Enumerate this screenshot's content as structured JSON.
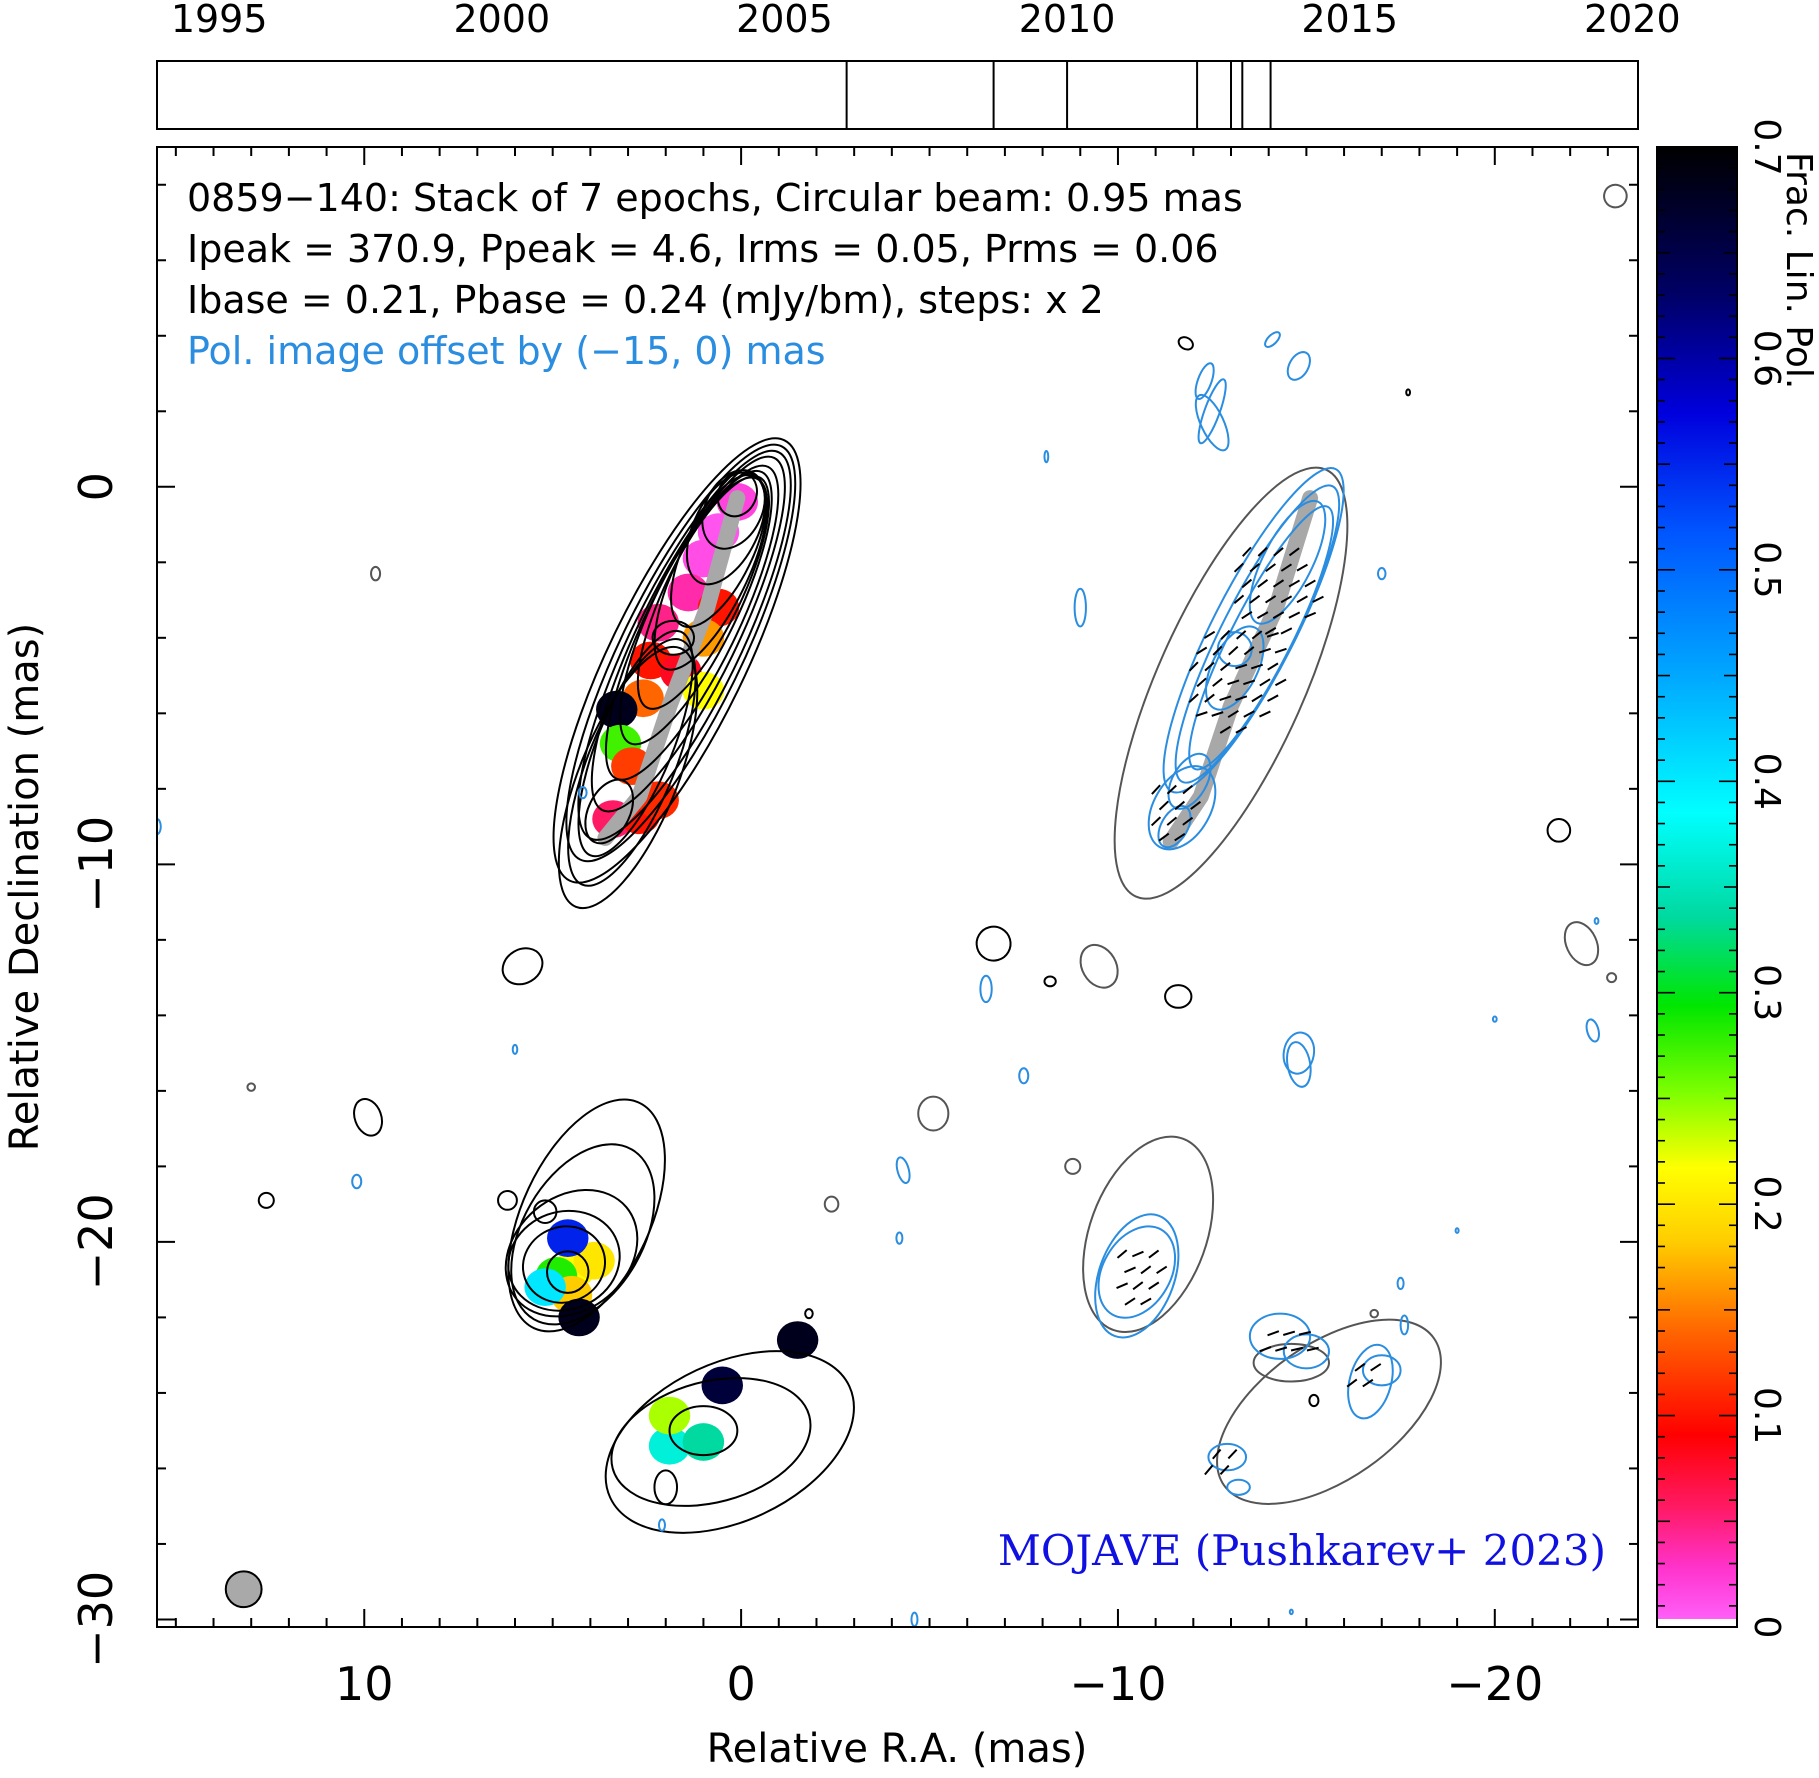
{
  "chart_data": {
    "type": "heatmap",
    "header": {
      "line1": "0859−140: Stack of 7 epochs, Circular beam: 0.95 mas",
      "line2": "Ipeak = 370.9, Ppeak = 4.6, Irms = 0.05, Prms = 0.06",
      "line3": "Ibase = 0.21, Pbase = 0.24 (mJy/bm), steps: x 2",
      "line4": "Pol. image offset by (−15, 0) mas"
    },
    "credit": "MOJAVE (Pushkarev+ 2023)",
    "xlabel": "Relative R.A. (mas)",
    "ylabel": "Relative Declination (mas)",
    "colorbar_label": "Frac. Lin. Pol.",
    "xlim": [
      15.5,
      -23.8
    ],
    "ylim": [
      -30.2,
      9.0
    ],
    "x_ticks": [
      "10",
      "0",
      "−10",
      "−20"
    ],
    "y_ticks": [
      "0",
      "−10",
      "−20",
      "−30"
    ],
    "colorbar_range": [
      0,
      0.7
    ],
    "colorbar_ticks": [
      "0",
      "0.1",
      "0.2",
      "0.3",
      "0.4",
      "0.5",
      "0.6",
      "0.7"
    ],
    "timeline": {
      "years": [
        "1995",
        "2000",
        "2005",
        "2010",
        "2015",
        "2020"
      ],
      "range": [
        1993.9,
        2020.1
      ],
      "epochs": [
        2006.1,
        2008.7,
        2010.0,
        2012.3,
        2012.9,
        2013.1,
        2013.6
      ]
    },
    "stack_epochs": 7,
    "beam_mas": 0.95,
    "ridge_total": [
      [
        0.1,
        -0.3
      ],
      [
        0.9,
        -3.2
      ],
      [
        1.9,
        -5.8
      ],
      [
        2.7,
        -8.2
      ],
      [
        3.6,
        -9.3
      ]
    ],
    "ridge_pol": [
      [
        -15.1,
        -0.3
      ],
      [
        -14.2,
        -3.2
      ],
      [
        -13.0,
        -5.8
      ],
      [
        -12.2,
        -8.2
      ],
      [
        -11.4,
        -9.4
      ]
    ],
    "color_patches": [
      {
        "x": 0.1,
        "y": -0.4,
        "v": 0.02
      },
      {
        "x": 0.6,
        "y": -1.2,
        "v": 0.01
      },
      {
        "x": 1.0,
        "y": -1.9,
        "v": 0.015
      },
      {
        "x": 1.4,
        "y": -2.8,
        "v": 0.04
      },
      {
        "x": 0.6,
        "y": -3.2,
        "v": 0.1
      },
      {
        "x": 2.2,
        "y": -3.6,
        "v": 0.05
      },
      {
        "x": 1.0,
        "y": -4.0,
        "v": 0.16
      },
      {
        "x": 2.4,
        "y": -4.6,
        "v": 0.1
      },
      {
        "x": 1.6,
        "y": -4.9,
        "v": 0.08
      },
      {
        "x": 2.6,
        "y": -5.6,
        "v": 0.14
      },
      {
        "x": 1.0,
        "y": -5.4,
        "v": 0.22
      },
      {
        "x": 3.3,
        "y": -5.9,
        "v": 0.68
      },
      {
        "x": 3.2,
        "y": -6.8,
        "v": 0.27
      },
      {
        "x": 2.9,
        "y": -7.4,
        "v": 0.12
      },
      {
        "x": 3.4,
        "y": -8.8,
        "v": 0.06
      },
      {
        "x": 2.7,
        "y": -8.7,
        "v": 0.1
      },
      {
        "x": 2.2,
        "y": -8.3,
        "v": 0.11
      },
      {
        "x": 4.4,
        "y": -20.7,
        "v": 0.22
      },
      {
        "x": 3.9,
        "y": -20.5,
        "v": 0.2
      },
      {
        "x": 4.9,
        "y": -20.9,
        "v": 0.28
      },
      {
        "x": 4.5,
        "y": -21.4,
        "v": 0.18
      },
      {
        "x": 4.6,
        "y": -19.9,
        "v": 0.55
      },
      {
        "x": 5.2,
        "y": -21.2,
        "v": 0.4
      },
      {
        "x": 4.3,
        "y": -22.0,
        "v": 0.68
      },
      {
        "x": 1.9,
        "y": -25.4,
        "v": 0.36
      },
      {
        "x": 1.0,
        "y": -25.3,
        "v": 0.33
      },
      {
        "x": 1.9,
        "y": -24.6,
        "v": 0.24
      },
      {
        "x": -1.5,
        "y": -22.6,
        "v": 0.68
      },
      {
        "x": 0.5,
        "y": -23.8,
        "v": 0.66
      }
    ],
    "total_contours_main": [
      {
        "cx": 1.7,
        "cy": -4.6,
        "rx": 6.5,
        "ry": 1.8,
        "rot": -64
      },
      {
        "cx": 1.6,
        "cy": -4.4,
        "rx": 6.1,
        "ry": 1.6,
        "rot": -64
      },
      {
        "cx": 1.5,
        "cy": -4.2,
        "rx": 5.7,
        "ry": 1.45,
        "rot": -64
      },
      {
        "cx": 1.4,
        "cy": -3.9,
        "rx": 5.2,
        "ry": 1.3,
        "rot": -64
      },
      {
        "cx": 1.3,
        "cy": -3.6,
        "rx": 4.6,
        "ry": 1.2,
        "rot": -64
      },
      {
        "cx": 1.2,
        "cy": -3.2,
        "rx": 4.0,
        "ry": 1.1,
        "rot": -64
      },
      {
        "cx": 1.0,
        "cy": -2.8,
        "rx": 3.4,
        "ry": 1.0,
        "rot": -64
      },
      {
        "cx": 0.8,
        "cy": -2.3,
        "rx": 2.8,
        "ry": 0.95,
        "rot": -64
      },
      {
        "cx": 0.6,
        "cy": -1.7,
        "rx": 2.2,
        "ry": 0.9,
        "rot": -64
      },
      {
        "cx": 0.4,
        "cy": -1.1,
        "rx": 1.6,
        "ry": 0.85,
        "rot": -64
      },
      {
        "cx": 0.2,
        "cy": -0.6,
        "rx": 1.1,
        "ry": 0.75,
        "rot": -64
      },
      {
        "cx": 0.1,
        "cy": -0.2,
        "rx": 0.6,
        "ry": 0.5,
        "rot": -64
      },
      {
        "cx": 1.8,
        "cy": -4.0,
        "rx": 0.55,
        "ry": 0.45,
        "rot": 0
      },
      {
        "cx": 3.5,
        "cy": -8.6,
        "rx": 0.9,
        "ry": 0.55,
        "rot": -64
      },
      {
        "cx": 2.8,
        "cy": -6.8,
        "rx": 3.2,
        "ry": 1.0,
        "rot": -68
      },
      {
        "cx": 2.9,
        "cy": -7.3,
        "rx": 3.5,
        "ry": 1.15,
        "rot": -68
      },
      {
        "cx": 3.0,
        "cy": -7.7,
        "rx": 3.7,
        "ry": 1.3,
        "rot": -68
      }
    ],
    "total_contours_pol_offset": [
      {
        "cx": -13.0,
        "cy": -5.2,
        "rx": 6.2,
        "ry": 1.95,
        "rot": -66
      }
    ],
    "pol_contours": [
      {
        "cx": -13.6,
        "cy": -3.8,
        "rx": 4.8,
        "ry": 1.1,
        "rot": -63
      },
      {
        "cx": -13.7,
        "cy": -3.9,
        "rx": 4.4,
        "ry": 0.95,
        "rot": -63
      },
      {
        "cx": -13.8,
        "cy": -4.0,
        "rx": 3.9,
        "ry": 0.8,
        "rot": -63
      },
      {
        "cx": -14.5,
        "cy": -2.0,
        "rx": 1.8,
        "ry": 0.65,
        "rot": -63
      },
      {
        "cx": -13.1,
        "cy": -4.8,
        "rx": 1.2,
        "ry": 0.6,
        "rot": -63
      },
      {
        "cx": -13.1,
        "cy": -4.3,
        "rx": 0.45,
        "ry": 0.45,
        "rot": 0
      },
      {
        "cx": -11.9,
        "cy": -7.8,
        "rx": 0.8,
        "ry": 0.45,
        "rot": -60
      },
      {
        "cx": -11.7,
        "cy": -8.5,
        "rx": 1.2,
        "ry": 0.75,
        "rot": -60
      },
      {
        "cx": -11.5,
        "cy": -9.0,
        "rx": 0.6,
        "ry": 0.35,
        "rot": -60
      }
    ],
    "evpa_regions": [
      {
        "cx": -14.2,
        "cy": -2.6,
        "w": 2.4,
        "h": 2.6,
        "angle": -30
      },
      {
        "cx": -13.2,
        "cy": -5.0,
        "w": 2.8,
        "h": 3.0,
        "angle": -25
      },
      {
        "cx": -11.5,
        "cy": -8.5,
        "w": 1.4,
        "h": 1.8,
        "angle": -40
      },
      {
        "cx": -10.6,
        "cy": -20.9,
        "w": 1.4,
        "h": 2.0,
        "angle": -30
      },
      {
        "cx": -14.5,
        "cy": -22.6,
        "w": 1.6,
        "h": 1.2,
        "angle": -20
      },
      {
        "cx": -16.5,
        "cy": -23.5,
        "w": 1.0,
        "h": 1.2,
        "angle": -30
      },
      {
        "cx": -12.8,
        "cy": -25.7,
        "w": 1.2,
        "h": 1.0,
        "angle": -50
      }
    ],
    "beam": {
      "x": 13.2,
      "y": -29.2,
      "d": 0.95
    }
  }
}
